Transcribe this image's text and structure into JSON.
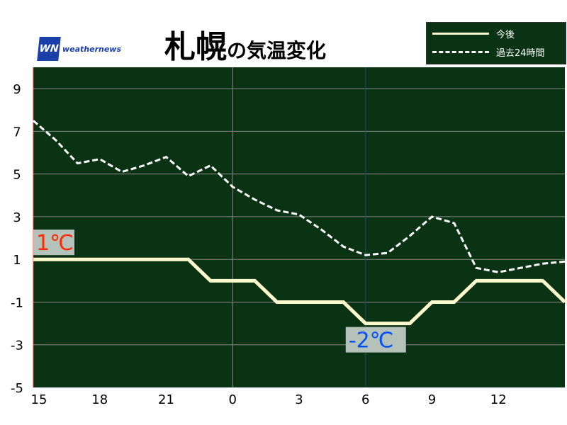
{
  "logo": {
    "mark": "WN",
    "text": "weathernews"
  },
  "title": {
    "city": "札幌",
    "suffix": "の気温変化"
  },
  "colors": {
    "plot_bg": "#0a3314",
    "forecast": "#fffacd",
    "past": "#ffffff",
    "max_label": "#ff2a00",
    "min_label": "#0050ff",
    "now_line": "#1a3fa8"
  },
  "chart_data": {
    "type": "line",
    "x": [
      "15",
      "16",
      "17",
      "18",
      "19",
      "20",
      "21",
      "22",
      "23",
      "0",
      "1",
      "2",
      "3",
      "4",
      "5",
      "6",
      "7",
      "8",
      "9",
      "10",
      "11",
      "12",
      "13",
      "14",
      "15"
    ],
    "x_tick_labels": [
      "15",
      "18",
      "21",
      "0",
      "3",
      "6",
      "9",
      "12"
    ],
    "y_tick_labels": [
      "9",
      "7",
      "5",
      "3",
      "1",
      "-1",
      "-3",
      "-5"
    ],
    "ylim": [
      -5,
      10
    ],
    "grid": true,
    "legend_position": "top-right",
    "series": [
      {
        "name": "今後",
        "style": "solid",
        "values": [
          1,
          1,
          1,
          1,
          1,
          1,
          1,
          1,
          0,
          0,
          0,
          -1,
          -1,
          -1,
          -1,
          -2,
          -2,
          -2,
          -1,
          -1,
          0,
          0,
          0,
          0,
          -1
        ]
      },
      {
        "name": "過去24時間",
        "style": "dashed",
        "values": [
          7.5,
          6.6,
          5.5,
          5.7,
          5.1,
          5.4,
          5.8,
          4.9,
          5.4,
          4.4,
          3.8,
          3.3,
          3.1,
          2.4,
          1.6,
          1.2,
          1.3,
          2.1,
          3.0,
          2.7,
          0.6,
          0.4,
          0.6,
          0.8,
          0.9
        ]
      }
    ],
    "annotations": [
      {
        "text": "1℃",
        "x": "15",
        "y": 1,
        "kind": "max"
      },
      {
        "text": "-2℃",
        "x": "6",
        "y": -2,
        "kind": "min"
      }
    ],
    "now_marker_x": "6"
  }
}
